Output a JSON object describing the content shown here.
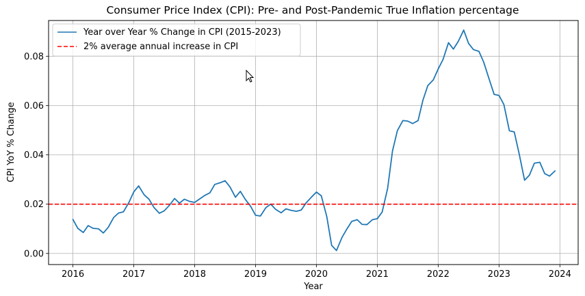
{
  "chart_data": {
    "type": "line",
    "title": "Consumer Price Index (CPI): Pre- and Post-Pandemic True Inflation percentage",
    "xlabel": "Year",
    "ylabel": "CPI YoY % Change",
    "xlim": [
      2015.6,
      2024.3
    ],
    "ylim": [
      -0.0045,
      0.0945
    ],
    "x_ticks": [
      "2016",
      "2017",
      "2018",
      "2019",
      "2020",
      "2021",
      "2022",
      "2023",
      "2024"
    ],
    "y_ticks": [
      "0.00",
      "0.02",
      "0.04",
      "0.06",
      "0.08"
    ],
    "grid": true,
    "legend_position": "upper-left",
    "series": [
      {
        "name": "Year over Year % Change in CPI (2015-2023)",
        "color": "#1f77b4",
        "style": "solid",
        "points": [
          [
            2016.0,
            0.0138
          ],
          [
            2016.08,
            0.0102
          ],
          [
            2016.17,
            0.0085
          ],
          [
            2016.25,
            0.0113
          ],
          [
            2016.33,
            0.0102
          ],
          [
            2016.42,
            0.01
          ],
          [
            2016.5,
            0.0083
          ],
          [
            2016.58,
            0.0106
          ],
          [
            2016.67,
            0.0146
          ],
          [
            2016.75,
            0.0164
          ],
          [
            2016.83,
            0.0169
          ],
          [
            2016.92,
            0.0207
          ],
          [
            2017.0,
            0.025
          ],
          [
            2017.08,
            0.0274
          ],
          [
            2017.17,
            0.0238
          ],
          [
            2017.25,
            0.022
          ],
          [
            2017.33,
            0.0187
          ],
          [
            2017.42,
            0.0163
          ],
          [
            2017.5,
            0.0173
          ],
          [
            2017.58,
            0.0194
          ],
          [
            2017.67,
            0.0223
          ],
          [
            2017.75,
            0.0204
          ],
          [
            2017.83,
            0.022
          ],
          [
            2017.92,
            0.0211
          ],
          [
            2018.0,
            0.0207
          ],
          [
            2018.08,
            0.0221
          ],
          [
            2018.17,
            0.0236
          ],
          [
            2018.25,
            0.0246
          ],
          [
            2018.33,
            0.028
          ],
          [
            2018.42,
            0.0287
          ],
          [
            2018.5,
            0.0295
          ],
          [
            2018.58,
            0.027
          ],
          [
            2018.67,
            0.0228
          ],
          [
            2018.75,
            0.0252
          ],
          [
            2018.83,
            0.022
          ],
          [
            2018.92,
            0.0191
          ],
          [
            2019.0,
            0.0155
          ],
          [
            2019.08,
            0.0152
          ],
          [
            2019.17,
            0.0186
          ],
          [
            2019.25,
            0.02
          ],
          [
            2019.33,
            0.0179
          ],
          [
            2019.42,
            0.0165
          ],
          [
            2019.5,
            0.0181
          ],
          [
            2019.58,
            0.0175
          ],
          [
            2019.67,
            0.0171
          ],
          [
            2019.75,
            0.0176
          ],
          [
            2019.83,
            0.0205
          ],
          [
            2019.92,
            0.0229
          ],
          [
            2020.0,
            0.0249
          ],
          [
            2020.08,
            0.0234
          ],
          [
            2020.17,
            0.015
          ],
          [
            2020.25,
            0.0033
          ],
          [
            2020.33,
            0.0012
          ],
          [
            2020.42,
            0.0065
          ],
          [
            2020.5,
            0.0099
          ],
          [
            2020.58,
            0.013
          ],
          [
            2020.67,
            0.0137
          ],
          [
            2020.75,
            0.0118
          ],
          [
            2020.83,
            0.0117
          ],
          [
            2020.92,
            0.0137
          ],
          [
            2021.0,
            0.0141
          ],
          [
            2021.08,
            0.0168
          ],
          [
            2021.17,
            0.0264
          ],
          [
            2021.25,
            0.0416
          ],
          [
            2021.33,
            0.0498
          ],
          [
            2021.42,
            0.0539
          ],
          [
            2021.5,
            0.0537
          ],
          [
            2021.58,
            0.0527
          ],
          [
            2021.67,
            0.0539
          ],
          [
            2021.75,
            0.0622
          ],
          [
            2021.83,
            0.0681
          ],
          [
            2021.92,
            0.0704
          ],
          [
            2022.0,
            0.0748
          ],
          [
            2022.08,
            0.0787
          ],
          [
            2022.17,
            0.0855
          ],
          [
            2022.25,
            0.0829
          ],
          [
            2022.33,
            0.086
          ],
          [
            2022.42,
            0.0906
          ],
          [
            2022.5,
            0.0852
          ],
          [
            2022.58,
            0.0827
          ],
          [
            2022.67,
            0.082
          ],
          [
            2022.75,
            0.0775
          ],
          [
            2022.83,
            0.0713
          ],
          [
            2022.92,
            0.0645
          ],
          [
            2023.0,
            0.0641
          ],
          [
            2023.08,
            0.0604
          ],
          [
            2023.17,
            0.0498
          ],
          [
            2023.25,
            0.0493
          ],
          [
            2023.33,
            0.0405
          ],
          [
            2023.42,
            0.0297
          ],
          [
            2023.5,
            0.0318
          ],
          [
            2023.58,
            0.0366
          ],
          [
            2023.67,
            0.037
          ],
          [
            2023.75,
            0.0324
          ],
          [
            2023.83,
            0.0314
          ],
          [
            2023.92,
            0.0335
          ]
        ]
      },
      {
        "name": "2% average annual increase in CPI",
        "color": "#ff0000",
        "style": "dashed",
        "y": 0.02
      }
    ]
  }
}
